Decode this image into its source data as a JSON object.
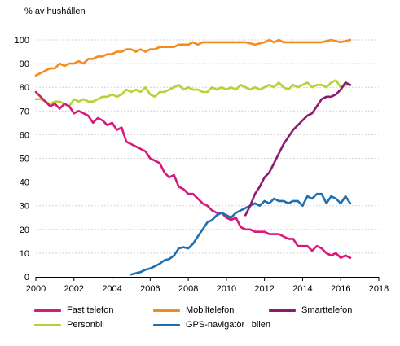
{
  "chart_data": {
    "type": "line",
    "ylabel": "% av hushållen",
    "xlim": [
      2000,
      2018
    ],
    "ylim": [
      0,
      100
    ],
    "xticks": [
      "2000",
      "2002",
      "2004",
      "2006",
      "2008",
      "2010",
      "2012",
      "2014",
      "2016",
      "2018"
    ],
    "yticks": [
      "0",
      "10",
      "20",
      "30",
      "40",
      "50",
      "60",
      "70",
      "80",
      "90",
      "100"
    ],
    "gridlines": "horizontal",
    "legend_position": "bottom",
    "series": [
      {
        "name": "Mobiltelefon",
        "color": "#f28c1e",
        "x": [
          2000,
          2000.25,
          2000.5,
          2000.75,
          2001,
          2001.25,
          2001.5,
          2001.75,
          2002,
          2002.25,
          2002.5,
          2002.75,
          2003,
          2003.25,
          2003.5,
          2003.75,
          2004,
          2004.25,
          2004.5,
          2004.75,
          2005,
          2005.25,
          2005.5,
          2005.75,
          2006,
          2006.25,
          2006.5,
          2006.75,
          2007,
          2007.25,
          2007.5,
          2007.75,
          2008,
          2008.25,
          2008.5,
          2008.75,
          2009,
          2009.5,
          2010,
          2010.5,
          2011,
          2011.5,
          2012,
          2012.25,
          2012.5,
          2012.75,
          2013,
          2013.5,
          2014,
          2014.5,
          2015,
          2015.5,
          2016,
          2016.5
        ],
        "values": [
          85,
          86,
          87,
          88,
          88,
          90,
          89,
          90,
          90,
          91,
          90,
          92,
          92,
          93,
          93,
          94,
          94,
          95,
          95,
          96,
          96,
          95,
          96,
          95,
          96,
          96,
          97,
          97,
          97,
          97,
          98,
          98,
          98,
          99,
          98,
          99,
          99,
          99,
          99,
          99,
          99,
          98,
          99,
          100,
          99,
          100,
          99,
          99,
          99,
          99,
          99,
          100,
          99,
          100
        ]
      },
      {
        "name": "Personbil",
        "color": "#b5d335",
        "x": [
          2000,
          2000.25,
          2000.5,
          2000.75,
          2001,
          2001.25,
          2001.5,
          2001.75,
          2002,
          2002.25,
          2002.5,
          2002.75,
          2003,
          2003.25,
          2003.5,
          2003.75,
          2004,
          2004.25,
          2004.5,
          2004.75,
          2005,
          2005.25,
          2005.5,
          2005.75,
          2006,
          2006.25,
          2006.5,
          2006.75,
          2007,
          2007.25,
          2007.5,
          2007.75,
          2008,
          2008.25,
          2008.5,
          2008.75,
          2009,
          2009.25,
          2009.5,
          2009.75,
          2010,
          2010.25,
          2010.5,
          2010.75,
          2011,
          2011.25,
          2011.5,
          2011.75,
          2012,
          2012.25,
          2012.5,
          2012.75,
          2013,
          2013.25,
          2013.5,
          2013.75,
          2014,
          2014.25,
          2014.5,
          2014.75,
          2015,
          2015.25,
          2015.5,
          2015.75,
          2016,
          2016.25,
          2016.5
        ],
        "values": [
          75,
          75,
          74,
          73,
          74,
          74,
          73,
          72,
          75,
          74,
          75,
          74,
          74,
          75,
          76,
          76,
          77,
          76,
          77,
          79,
          78,
          79,
          78,
          80,
          77,
          76,
          78,
          78,
          79,
          80,
          81,
          79,
          80,
          79,
          79,
          78,
          78,
          80,
          79,
          80,
          79,
          80,
          79,
          81,
          80,
          79,
          80,
          79,
          80,
          81,
          80,
          82,
          80,
          79,
          81,
          80,
          81,
          82,
          80,
          81,
          81,
          80,
          82,
          83,
          80,
          81,
          81
        ]
      },
      {
        "name": "Fast telefon",
        "color": "#d6197b",
        "x": [
          2000,
          2000.25,
          2000.5,
          2000.75,
          2001,
          2001.25,
          2001.5,
          2001.75,
          2002,
          2002.25,
          2002.5,
          2002.75,
          2003,
          2003.25,
          2003.5,
          2003.75,
          2004,
          2004.25,
          2004.5,
          2004.75,
          2005,
          2005.25,
          2005.5,
          2005.75,
          2006,
          2006.25,
          2006.5,
          2006.75,
          2007,
          2007.25,
          2007.5,
          2007.75,
          2008,
          2008.25,
          2008.5,
          2008.75,
          2009,
          2009.25,
          2009.5,
          2009.75,
          2010,
          2010.25,
          2010.5,
          2010.75,
          2011,
          2011.25,
          2011.5,
          2011.75,
          2012,
          2012.25,
          2012.5,
          2012.75,
          2013,
          2013.25,
          2013.5,
          2013.75,
          2014,
          2014.25,
          2014.5,
          2014.75,
          2015,
          2015.25,
          2015.5,
          2015.75,
          2016,
          2016.25,
          2016.5
        ],
        "values": [
          78,
          76,
          74,
          72,
          73,
          71,
          73,
          72,
          69,
          70,
          69,
          68,
          65,
          67,
          66,
          64,
          65,
          62,
          63,
          57,
          56,
          55,
          54,
          53,
          50,
          49,
          48,
          44,
          42,
          43,
          38,
          37,
          35,
          35,
          33,
          31,
          30,
          28,
          27,
          27,
          25,
          24,
          25,
          21,
          20,
          20,
          19,
          19,
          19,
          18,
          18,
          18,
          17,
          16,
          16,
          13,
          13,
          13,
          11,
          13,
          12,
          10,
          9,
          10,
          8,
          9,
          8
        ]
      },
      {
        "name": "GPS-navigatör i bilen",
        "color": "#1f6fb0",
        "x": [
          2005,
          2005.25,
          2005.5,
          2005.75,
          2006,
          2006.25,
          2006.5,
          2006.75,
          2007,
          2007.25,
          2007.5,
          2007.75,
          2008,
          2008.25,
          2008.5,
          2008.75,
          2009,
          2009.25,
          2009.5,
          2009.75,
          2010,
          2010.25,
          2010.5,
          2010.75,
          2011,
          2011.25,
          2011.5,
          2011.75,
          2012,
          2012.25,
          2012.5,
          2012.75,
          2013,
          2013.25,
          2013.5,
          2013.75,
          2014,
          2014.25,
          2014.5,
          2014.75,
          2015,
          2015.25,
          2015.5,
          2015.75,
          2016,
          2016.25,
          2016.5
        ],
        "values": [
          1,
          1.5,
          2,
          3,
          3.5,
          4.5,
          5.5,
          7,
          7.5,
          9,
          12,
          12.5,
          12,
          14,
          17,
          20,
          23,
          24,
          26,
          27,
          26,
          25,
          27,
          28,
          29,
          30,
          31,
          30,
          32,
          31,
          33,
          32,
          32,
          31,
          32,
          32,
          30,
          34,
          33,
          35,
          35,
          31,
          34,
          33,
          31,
          34,
          31
        ]
      },
      {
        "name": "Smarttelefon",
        "color": "#8c1a6f",
        "x": [
          2011,
          2011.25,
          2011.5,
          2011.75,
          2012,
          2012.25,
          2012.5,
          2012.75,
          2013,
          2013.25,
          2013.5,
          2013.75,
          2014,
          2014.25,
          2014.5,
          2014.75,
          2015,
          2015.25,
          2015.5,
          2015.75,
          2016,
          2016.25,
          2016.5
        ],
        "values": [
          26,
          30,
          35,
          38,
          42,
          44,
          48,
          52,
          56,
          59,
          62,
          64,
          66,
          68,
          69,
          72,
          75,
          76,
          76,
          77,
          79,
          82,
          81
        ]
      }
    ]
  }
}
